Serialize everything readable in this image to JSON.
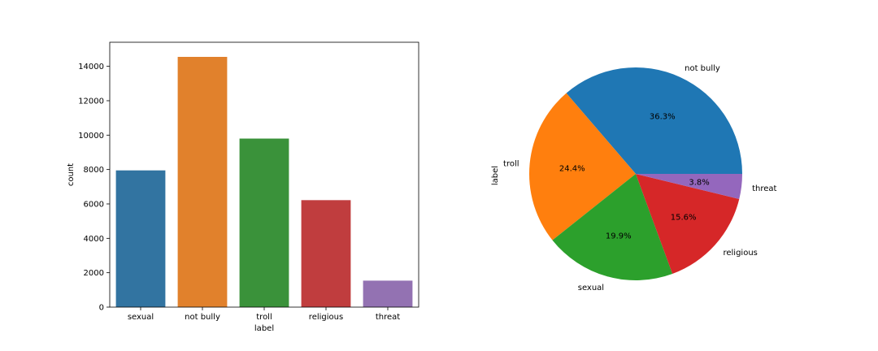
{
  "chart_data": [
    {
      "type": "bar",
      "xlabel": "label",
      "ylabel": "count",
      "categories": [
        "sexual",
        "not bully",
        "troll",
        "religious",
        "threat"
      ],
      "values": [
        7950,
        14550,
        9800,
        6220,
        1540
      ],
      "colors": [
        "#3274a1",
        "#e1812c",
        "#3a923a",
        "#c03d3e",
        "#9372b2"
      ],
      "ylim": [
        0,
        15400
      ],
      "yticks": [
        0,
        2000,
        4000,
        6000,
        8000,
        10000,
        12000,
        14000
      ],
      "grid": false
    },
    {
      "type": "pie",
      "ylabel": "label",
      "slices": [
        {
          "label": "not bully",
          "pct_label": "36.3%",
          "value": 36.3,
          "color": "#1f77b4"
        },
        {
          "label": "troll",
          "pct_label": "24.4%",
          "value": 24.4,
          "color": "#ff7f0e"
        },
        {
          "label": "sexual",
          "pct_label": "19.9%",
          "value": 19.9,
          "color": "#2ca02c"
        },
        {
          "label": "religious",
          "pct_label": "15.6%",
          "value": 15.6,
          "color": "#d62728"
        },
        {
          "label": "threat",
          "pct_label": "3.8%",
          "value": 3.8,
          "color": "#9467bd"
        }
      ]
    }
  ]
}
